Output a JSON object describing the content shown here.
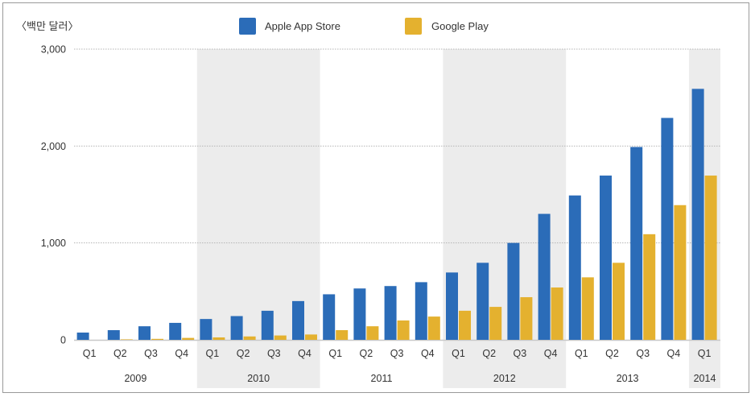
{
  "chart_data": {
    "type": "bar",
    "title": "",
    "unit_label": "〈백만 달러〉",
    "xlabel": "",
    "ylabel": "〈백만 달러〉",
    "ylim": [
      0,
      3000
    ],
    "yticks": [
      0,
      1000,
      2000,
      3000
    ],
    "ytick_labels": [
      "0",
      "1,000",
      "2,000",
      "3,000"
    ],
    "grid": "horizontal dotted",
    "legend_position": "top",
    "categories": [
      "Q1",
      "Q2",
      "Q3",
      "Q4",
      "Q1",
      "Q2",
      "Q3",
      "Q4",
      "Q1",
      "Q2",
      "Q3",
      "Q4",
      "Q1",
      "Q2",
      "Q3",
      "Q4",
      "Q1",
      "Q2",
      "Q3",
      "Q4",
      "Q1"
    ],
    "year_groups": [
      {
        "label": "2009",
        "count": 4,
        "shaded": false
      },
      {
        "label": "2010",
        "count": 4,
        "shaded": true
      },
      {
        "label": "2011",
        "count": 4,
        "shaded": false
      },
      {
        "label": "2012",
        "count": 4,
        "shaded": true
      },
      {
        "label": "2013",
        "count": 4,
        "shaded": false
      },
      {
        "label": "2014",
        "count": 1,
        "shaded": true
      }
    ],
    "series": [
      {
        "name": "Apple App Store",
        "color": "#2b6cb8",
        "values": [
          75,
          100,
          140,
          175,
          215,
          245,
          300,
          400,
          470,
          530,
          555,
          595,
          695,
          795,
          1000,
          1300,
          1490,
          1695,
          1990,
          2290,
          2590
        ]
      },
      {
        "name": "Google Play",
        "color": "#e4b12f",
        "values": [
          0,
          5,
          10,
          20,
          25,
          35,
          45,
          55,
          100,
          140,
          200,
          240,
          300,
          340,
          440,
          540,
          645,
          795,
          1090,
          1390,
          1695
        ]
      }
    ]
  },
  "colors": {
    "shade": "#ececec",
    "grid": "#b5b5b5",
    "axis": "#c8c8c8",
    "border": "#9a9a9a"
  }
}
